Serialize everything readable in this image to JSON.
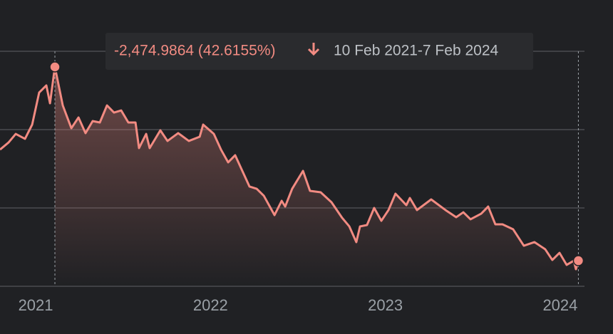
{
  "chart_data": {
    "type": "area-line",
    "annotation": {
      "change_label": "-2,474.9864 (42.6155%)",
      "period": "10 Feb 2021-7 Feb 2024"
    },
    "x": [
      2020.796,
      2020.845,
      2020.886,
      2020.939,
      2020.98,
      2021.02,
      2021.061,
      2021.082,
      2021.11,
      2021.155,
      2021.204,
      2021.245,
      2021.285,
      2021.326,
      2021.367,
      2021.408,
      2021.448,
      2021.489,
      2021.53,
      2021.571,
      2021.591,
      2021.632,
      2021.652,
      2021.713,
      2021.754,
      2021.815,
      2021.876,
      2021.938,
      2021.958,
      2022.019,
      2022.06,
      2022.101,
      2022.141,
      2022.182,
      2022.223,
      2022.264,
      2022.305,
      2022.366,
      2022.407,
      2022.427,
      2022.467,
      2022.529,
      2022.569,
      2022.63,
      2022.692,
      2022.753,
      2022.794,
      2022.834,
      2022.855,
      2022.895,
      2022.936,
      2022.977,
      2023.018,
      2023.058,
      2023.12,
      2023.14,
      2023.181,
      2023.262,
      2023.344,
      2023.405,
      2023.446,
      2023.487,
      2023.548,
      2023.588,
      2023.629,
      2023.67,
      2023.731,
      2023.792,
      2023.853,
      2023.914,
      2023.955,
      2023.996,
      2024.037,
      2024.078,
      2024.09,
      2024.104
    ],
    "series": [
      {
        "color": "#f28b82",
        "values": [
          4745,
          4836,
          4945,
          4882,
          5064,
          5473,
          5564,
          5336,
          5800,
          5309,
          5018,
          5155,
          4955,
          5109,
          5091,
          5309,
          5218,
          5245,
          5091,
          5091,
          4764,
          4945,
          4764,
          4991,
          4855,
          4955,
          4855,
          4909,
          5064,
          4945,
          4745,
          4582,
          4673,
          4473,
          4273,
          4245,
          4155,
          3909,
          4091,
          4018,
          4245,
          4473,
          4218,
          4200,
          4073,
          3873,
          3764,
          3564,
          3764,
          3782,
          4000,
          3836,
          3973,
          4182,
          4036,
          4127,
          3973,
          4109,
          3973,
          3882,
          3945,
          3855,
          3927,
          4018,
          3791,
          3791,
          3727,
          3518,
          3564,
          3473,
          3336,
          3427,
          3273,
          3327,
          3218,
          3327
        ]
      }
    ],
    "xlim": [
      2020.796,
      2024.302
    ],
    "xticks": [
      2021,
      2022,
      2023,
      2024
    ],
    "ylim": [
      3000,
      6000
    ],
    "yticks": [
      3000,
      4000,
      5000,
      6000
    ],
    "grid": true
  }
}
